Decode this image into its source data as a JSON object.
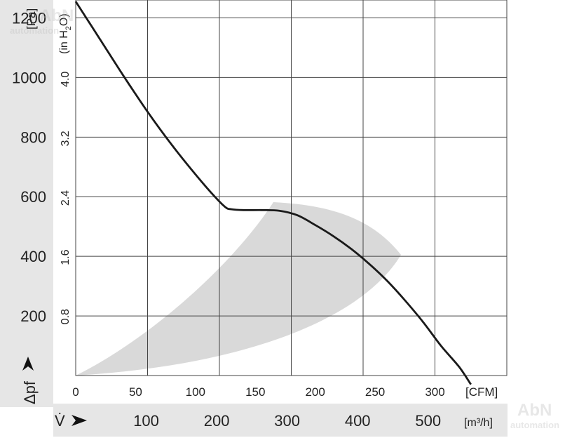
{
  "chart_data": {
    "type": "line",
    "y_left": {
      "unit": "[Pa]",
      "ticks": [
        200,
        400,
        600,
        800,
        1000,
        1200
      ],
      "range": [
        0,
        1260
      ]
    },
    "y_inner": {
      "unit_prefix": "(in H",
      "unit_sub": "2",
      "unit_suffix": "O)",
      "ticks": [
        {
          "label": "0.8",
          "value": 0.8
        },
        {
          "label": "1.6",
          "value": 1.6
        },
        {
          "label": "2.4",
          "value": 2.4
        },
        {
          "label": "3.2",
          "value": 3.2
        },
        {
          "label": "4.0",
          "value": 4.0
        }
      ]
    },
    "y_symbol": "Δpf",
    "x_top": {
      "unit": "[CFM]",
      "ticks": [
        "0",
        "50",
        "100",
        "150",
        "200",
        "250",
        "300"
      ],
      "range": [
        0,
        360
      ]
    },
    "x_bottom": {
      "symbol": "V̇",
      "unit": "[m³/h]",
      "ticks": [
        100,
        200,
        300,
        400,
        500
      ]
    },
    "grid": true,
    "series": [
      {
        "color": "#1a1a1a",
        "points": [
          [
            0,
            1255
          ],
          [
            20,
            1130
          ],
          [
            40,
            1005
          ],
          [
            60,
            885
          ],
          [
            80,
            775
          ],
          [
            100,
            675
          ],
          [
            115,
            605
          ],
          [
            125,
            565
          ],
          [
            130,
            558
          ],
          [
            140,
            555
          ],
          [
            155,
            555
          ],
          [
            170,
            553
          ],
          [
            185,
            538
          ],
          [
            200,
            505
          ],
          [
            215,
            468
          ],
          [
            230,
            425
          ],
          [
            245,
            375
          ],
          [
            260,
            318
          ],
          [
            275,
            252
          ],
          [
            290,
            180
          ],
          [
            305,
            100
          ],
          [
            320,
            30
          ],
          [
            330,
            -30
          ]
        ]
      }
    ],
    "operating_region_color": "#d9d9d9"
  },
  "watermark": {
    "text": "AbN",
    "subtext": "automation"
  }
}
